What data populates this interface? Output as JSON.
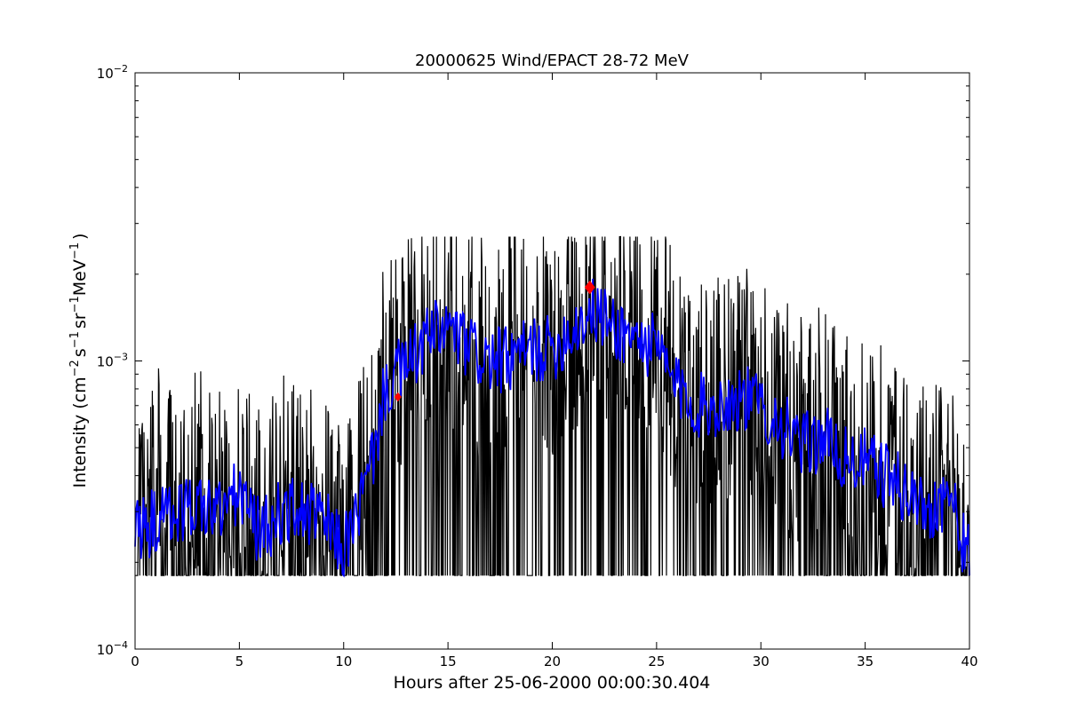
{
  "chart_data": {
    "type": "line",
    "title": "20000625 Wind/EPACT 28-72 MeV",
    "xlabel": "Hours after 25-06-2000 00:00:30.404",
    "ylabel": "Intensity (cm^-2 s^-1 sr^-1 MeV^-1 )",
    "ylabel_parts": {
      "t1": "Intensity (cm",
      "s1": "−2",
      "t2": "s",
      "s2": "−1",
      "t3": "sr",
      "s3": "−1",
      "t4": "MeV",
      "s4": "−1",
      "t5": ")"
    },
    "xlim": [
      0,
      40
    ],
    "ylim": [
      0.0001,
      0.01
    ],
    "yscale": "log",
    "grid": false,
    "x_ticks": [
      {
        "value": 0,
        "label": "0"
      },
      {
        "value": 5,
        "label": "5"
      },
      {
        "value": 10,
        "label": "10"
      },
      {
        "value": 15,
        "label": "15"
      },
      {
        "value": 20,
        "label": "20"
      },
      {
        "value": 25,
        "label": "25"
      },
      {
        "value": 30,
        "label": "30"
      },
      {
        "value": 35,
        "label": "35"
      },
      {
        "value": 40,
        "label": "40"
      }
    ],
    "y_ticks": [
      {
        "value": 0.0001,
        "base": "10",
        "exp": "−4"
      },
      {
        "value": 0.001,
        "base": "10",
        "exp": "−3"
      },
      {
        "value": 0.01,
        "base": "10",
        "exp": "−2"
      }
    ],
    "series": [
      {
        "role": "raw",
        "color": "#000000",
        "x": [
          0,
          1,
          2,
          3,
          4,
          5,
          6,
          7,
          8,
          9,
          10,
          11,
          11.5,
          12,
          12.5,
          13,
          14,
          15,
          16,
          17,
          18,
          19,
          20,
          21,
          22,
          23,
          24,
          25,
          26,
          27,
          28,
          29,
          30,
          31,
          32,
          33,
          34,
          35,
          36,
          37,
          38,
          39,
          40
        ],
        "y": [
          0.00018,
          0.00035,
          0.00025,
          0.00035,
          0.0003,
          0.00035,
          0.0003,
          0.00035,
          0.0003,
          0.0003,
          0.0002,
          0.00035,
          0.0005,
          0.0009,
          0.0009,
          0.001,
          0.0012,
          0.0013,
          0.00115,
          0.001,
          0.0011,
          0.0012,
          0.0011,
          0.0013,
          0.0016,
          0.0014,
          0.0013,
          0.0012,
          0.0008,
          0.00065,
          0.0007,
          0.0008,
          0.0007,
          0.0006,
          0.0005,
          0.0006,
          0.00045,
          0.0004,
          0.0004,
          0.00035,
          0.0003,
          0.0003,
          0.0002
        ],
        "floor": 0.00018
      },
      {
        "role": "smoothed",
        "color": "#0000ff",
        "x": [
          0,
          1,
          2,
          3,
          4,
          5,
          6,
          7,
          8,
          9,
          10,
          11,
          11.5,
          12,
          12.5,
          13,
          14,
          15,
          16,
          17,
          18,
          19,
          20,
          21,
          22,
          23,
          24,
          25,
          26,
          27,
          28,
          29,
          30,
          31,
          32,
          33,
          34,
          35,
          36,
          37,
          38,
          39,
          40
        ],
        "y": [
          0.00025,
          0.00028,
          0.0003,
          0.00032,
          0.0003,
          0.00035,
          0.00025,
          0.0003,
          0.0003,
          0.00028,
          0.00022,
          0.00035,
          0.0005,
          0.0008,
          0.0009,
          0.00095,
          0.0012,
          0.0013,
          0.0011,
          0.001,
          0.001,
          0.0011,
          0.0011,
          0.0013,
          0.0015,
          0.0013,
          0.0012,
          0.0011,
          0.0008,
          0.0007,
          0.0007,
          0.00075,
          0.0007,
          0.0006,
          0.0005,
          0.00055,
          0.00045,
          0.00045,
          0.0004,
          0.00035,
          0.0003,
          0.00035,
          0.0002
        ]
      }
    ],
    "markers": [
      {
        "x": 12.6,
        "y": 0.00075,
        "color": "#ff0000",
        "shape": "diamond",
        "size": "small"
      },
      {
        "x": 21.8,
        "y": 0.0018,
        "color": "#ff0000",
        "shape": "diamond",
        "size": "large"
      }
    ]
  }
}
